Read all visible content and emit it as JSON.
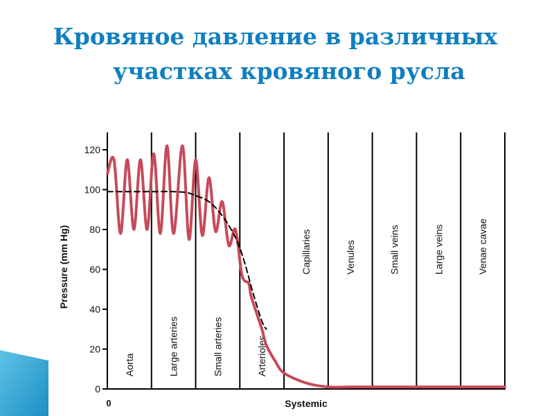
{
  "title": {
    "line1": "Кровяное давление в различных",
    "line2": "участках кровяного русла"
  },
  "colors": {
    "title": "#0f7fbf",
    "pressure_curve": "#c64a5a",
    "mean_curve": "#000000",
    "axis": "#000000",
    "decoration": "#1b8fc4"
  },
  "chart_data": {
    "type": "line",
    "title": "",
    "ylabel": "Pressure (mm Hg)",
    "xlabel": "Systemic",
    "x_tick_labels": [
      "0"
    ],
    "ylim": [
      0,
      120
    ],
    "xlim": [
      0,
      9
    ],
    "y_ticks": [
      0,
      20,
      40,
      60,
      80,
      100,
      120
    ],
    "grid": false,
    "segments": [
      "Aorta",
      "Large arteries",
      "Small arteries",
      "Arterioles",
      "Capillaries",
      "Venules",
      "Small veins",
      "Large veins",
      "Venae cavae"
    ],
    "series": [
      {
        "style": "solid",
        "x": [
          0,
          0.15,
          0.3,
          0.45,
          0.6,
          0.75,
          0.9,
          1.05,
          1.2,
          1.35,
          1.5,
          1.7,
          1.85,
          2.0,
          2.15,
          2.3,
          2.45,
          2.6,
          2.75,
          2.9,
          3.05,
          3.2,
          3.25,
          3.35,
          3.5,
          3.6,
          3.8,
          4.0,
          4.5,
          5.0,
          5.5,
          6.0,
          7.0,
          8.0,
          9.0
        ],
        "y": [
          108,
          115,
          78,
          115,
          80,
          115,
          80,
          118,
          78,
          122,
          78,
          122,
          75,
          115,
          77,
          106,
          79,
          94,
          72,
          80,
          57,
          53,
          47,
          40,
          30,
          22,
          14,
          8,
          3,
          1,
          1,
          1,
          1,
          1,
          1
        ]
      },
      {
        "style": "dashed",
        "x": [
          0,
          0.5,
          1.0,
          1.5,
          1.8,
          2.0,
          2.3,
          2.6,
          2.9,
          3.1,
          3.3,
          3.5,
          3.6
        ],
        "y": [
          99,
          99,
          99,
          99,
          98.5,
          97,
          94,
          87,
          76,
          64,
          48,
          34,
          30
        ]
      }
    ]
  }
}
